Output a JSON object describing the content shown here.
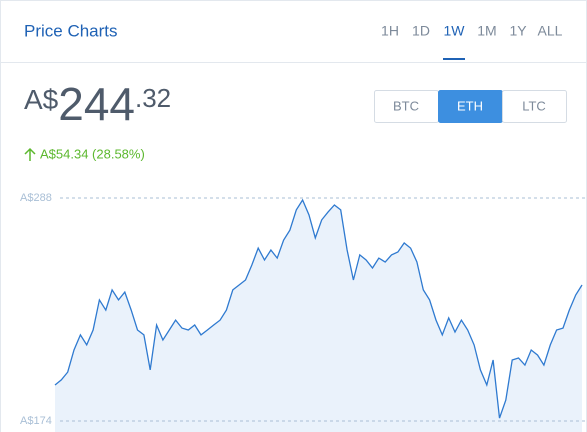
{
  "header": {
    "title": "Price Charts",
    "tabs": [
      "1H",
      "1D",
      "1W",
      "1M",
      "1Y",
      "ALL"
    ],
    "active_tab": "1W"
  },
  "price": {
    "currency": "A$",
    "integer": "244",
    "fraction": ".32"
  },
  "change": "A$54.34 (28.58%)",
  "currencies": [
    "BTC",
    "ETH",
    "LTC"
  ],
  "active_currency": "ETH",
  "chart_data": {
    "type": "area",
    "color": "#2f7ad0",
    "values": [
      192.4,
      195.0,
      199.0,
      210.3,
      218.0,
      212.9,
      220.5,
      235.9,
      230.7,
      241.0,
      235.9,
      239.9,
      230.7,
      220.5,
      218.0,
      200.1,
      223.1,
      215.4,
      220.5,
      225.6,
      221.5,
      220.5,
      223.1,
      218.0,
      220.5,
      223.1,
      225.6,
      230.7,
      241.0,
      243.5,
      246.1,
      253.7,
      262.4,
      256.3,
      261.4,
      257.3,
      266.5,
      271.6,
      281.9,
      287.0,
      279.3,
      267.6,
      276.8,
      280.8,
      284.4,
      281.9,
      261.4,
      246.1,
      258.9,
      256.3,
      252.2,
      257.3,
      255.3,
      258.9,
      260.4,
      265.0,
      262.4,
      255.3,
      241.0,
      235.9,
      225.6,
      218.0,
      226.7,
      219.5,
      225.6,
      220.5,
      212.9,
      200.1,
      192.4,
      205.2,
      175.5,
      184.7,
      205.2,
      206.2,
      202.6,
      210.3,
      207.7,
      202.6,
      212.9,
      220.5,
      221.5,
      230.7,
      238.4,
      243.5
    ],
    "ylim": [
      174,
      288
    ],
    "yticks": [
      {
        "value": 174,
        "label": "A$174"
      },
      {
        "value": 288,
        "label": "A$288"
      }
    ]
  }
}
